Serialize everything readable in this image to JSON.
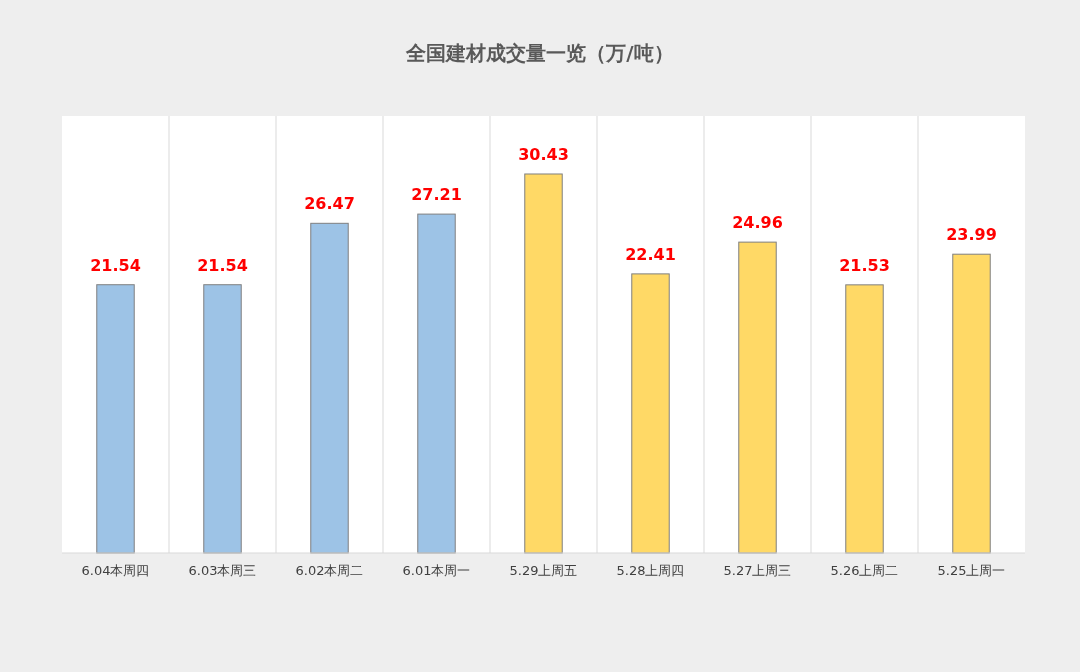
{
  "chart_data": {
    "type": "bar",
    "title": "全国建材成交量一览（万/吨）",
    "categories": [
      "6.04本周四",
      "6.03本周三",
      "6.02本周二",
      "6.01本周一",
      "5.29上周五",
      "5.28上周四",
      "5.27上周三",
      "5.26上周二",
      "5.25上周一"
    ],
    "values": [
      21.54,
      21.54,
      26.47,
      27.21,
      30.43,
      22.41,
      24.96,
      21.53,
      23.99
    ],
    "colors": [
      "#9dc3e6",
      "#9dc3e6",
      "#9dc3e6",
      "#9dc3e6",
      "#ffd966",
      "#ffd966",
      "#ffd966",
      "#ffd966",
      "#ffd966"
    ],
    "data_labels": true,
    "grid": "x"
  }
}
